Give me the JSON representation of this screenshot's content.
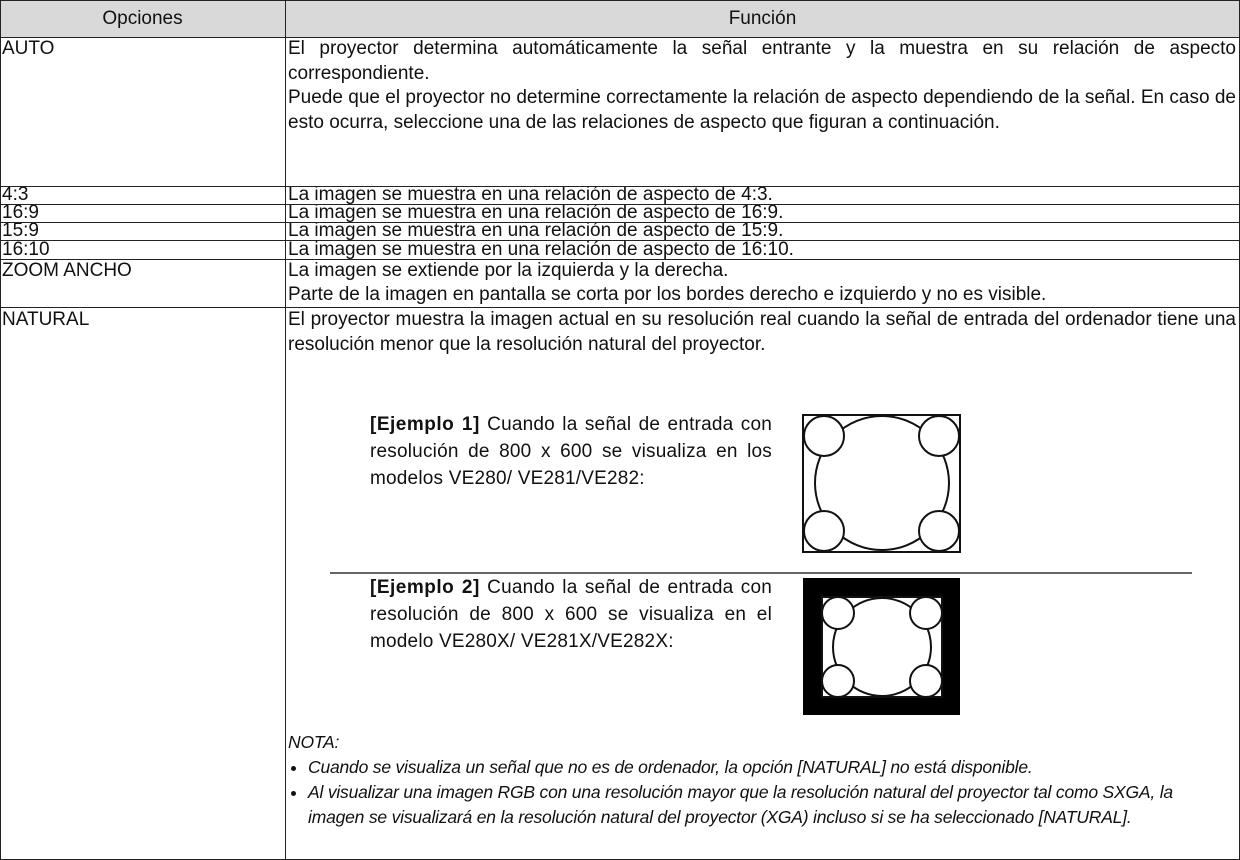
{
  "header": {
    "columns": [
      "Opciones",
      "Función"
    ]
  },
  "rows": [
    {
      "option": "AUTO",
      "function": [
        "El proyector determina automáticamente la señal entrante y la muestra en su relación de aspecto correspondiente.",
        "Puede que el proyector no determine correctamente la relación de aspecto dependiendo de la señal. En caso de esto ocurra, seleccione una de las relaciones de aspecto que figuran a continuación."
      ]
    },
    {
      "option": "4:3",
      "function": [
        "La imagen se muestra en una relación de aspecto de 4:3."
      ]
    },
    {
      "option": "16:9",
      "function": [
        "La imagen se muestra en una relación de aspecto de 16:9."
      ]
    },
    {
      "option": "15:9",
      "function": [
        "La imagen se muestra en una relación de aspecto de 15:9."
      ]
    },
    {
      "option": "16:10",
      "function": [
        "La imagen se muestra en una relación de aspecto de 16:10."
      ]
    },
    {
      "option": "ZOOM ANCHO",
      "function": [
        "La imagen se extiende por la izquierda y la derecha.",
        "Parte de la imagen en pantalla se corta por los bordes derecho e izquierdo y no es visible."
      ]
    },
    {
      "option": "NATURAL",
      "function": [
        "El proyector muestra la imagen actual en su resolución real cuando la señal de entrada del ordenador tiene una resolución menor que la resolución natural del proyector."
      ],
      "examples": [
        {
          "label": "[Ejemplo 1]",
          "text": "Cuando la señal de entrada con resolución de 800 x 600 se visualiza en los modelos VE280/ VE281/VE282:"
        },
        {
          "label": "[Ejemplo 2]",
          "text": "Cuando la señal de entrada con resolución de 800 x 600 se visualiza en el modelo VE280X/ VE281X/VE282X:"
        }
      ],
      "note": {
        "title": "NOTA:",
        "bullets": [
          "Cuando se visualiza un señal que no es de ordenador, la opción [NATURAL] no está disponible.",
          "Al visualizar una imagen RGB con una resolución mayor que la resolución natural del proyector tal como SXGA, la imagen se visualizará en la resolución natural del proyector (XGA) incluso si se ha seleccionado [NATURAL]."
        ]
      }
    }
  ]
}
